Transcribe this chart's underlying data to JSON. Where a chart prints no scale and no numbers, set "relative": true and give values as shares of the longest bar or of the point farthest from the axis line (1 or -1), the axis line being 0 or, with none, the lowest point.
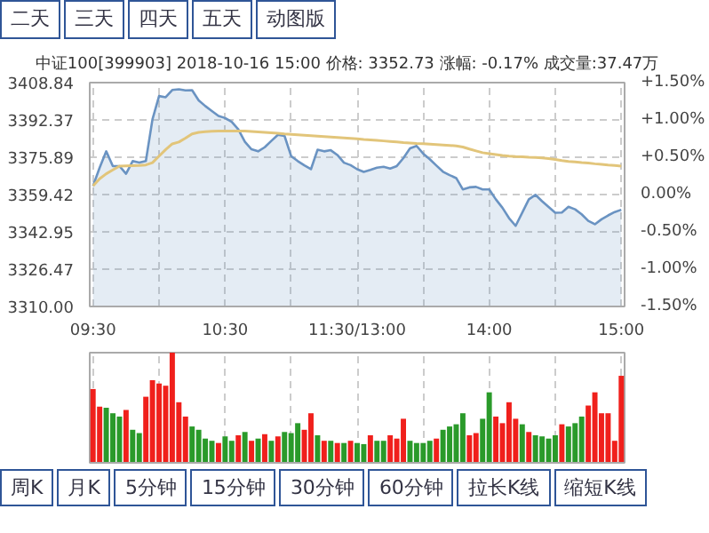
{
  "chart_data": [
    {
      "type": "area",
      "title": "中证100[399903]  2018-10-16 15:00  价格: 3352.73  涨幅: -0.17%  成交量:37.47万",
      "annotations": [
        "二天",
        "三天",
        "四天",
        "五天",
        "动图版"
      ],
      "categories": [
        "09:30",
        null,
        null,
        null,
        null,
        null,
        null,
        null,
        null,
        null,
        null,
        null,
        null,
        null,
        null,
        null,
        null,
        null,
        null,
        null,
        "10:30",
        null,
        null,
        null,
        null,
        null,
        null,
        null,
        null,
        null,
        null,
        null,
        null,
        null,
        null,
        null,
        null,
        null,
        null,
        null,
        "11:30/13:00",
        null,
        null,
        null,
        null,
        null,
        null,
        null,
        null,
        null,
        null,
        null,
        null,
        null,
        null,
        null,
        null,
        null,
        null,
        null,
        "14:00",
        null,
        null,
        null,
        null,
        null,
        null,
        null,
        null,
        null,
        null,
        null,
        null,
        null,
        null,
        null,
        null,
        null,
        null,
        null,
        "15:00"
      ],
      "ylim": [
        3310.0,
        3408.84
      ],
      "yticks": [
        {
          "value": 3310.0,
          "label": "3310.00"
        },
        {
          "value": 3326.47,
          "label": "3326.47"
        },
        {
          "value": 3342.95,
          "label": "3342.95"
        },
        {
          "value": 3359.42,
          "label": "3359.42"
        },
        {
          "value": 3375.89,
          "label": "3375.89"
        },
        {
          "value": 3392.37,
          "label": "3392.37"
        },
        {
          "value": 3408.84,
          "label": "3408.84"
        }
      ],
      "y2lim": [
        -1.5,
        1.5
      ],
      "y2ticks": [
        {
          "value": -1.5,
          "label": "-1.50%"
        },
        {
          "value": -1.0,
          "label": "-1.00%"
        },
        {
          "value": -0.5,
          "label": "-0.50%"
        },
        {
          "value": 0,
          "label": "0.00%"
        },
        {
          "value": 0.5,
          "label": "+0.50%"
        },
        {
          "value": 1.0,
          "label": "+1.00%"
        },
        {
          "value": 1.5,
          "label": "+1.50%"
        }
      ],
      "grid": true,
      "series": [
        {
          "type": "area",
          "color": "#6a93c2",
          "values": [
            3363.2,
            3371.3,
            3378.5,
            3372.0,
            3372.0,
            3368.6,
            3374.2,
            3373.5,
            3374.2,
            3392.6,
            3402.9,
            3402.4,
            3405.6,
            3405.9,
            3405.4,
            3405.5,
            3401.0,
            3398.5,
            3396.3,
            3394.1,
            3393.2,
            3391.5,
            3388.2,
            3382.7,
            3379.4,
            3378.5,
            3380.3,
            3383.1,
            3385.8,
            3385.3,
            3376.4,
            3374.2,
            3372.3,
            3370.6,
            3379.2,
            3378.5,
            3379.0,
            3376.9,
            3373.5,
            3372.4,
            3370.6,
            3369.4,
            3370.3,
            3371.3,
            3371.7,
            3370.9,
            3372.0,
            3375.5,
            3379.8,
            3380.9,
            3377.5,
            3375.0,
            3372.2,
            3369.5,
            3368.0,
            3366.7,
            3361.7,
            3362.6,
            3362.8,
            3361.7,
            3361.7,
            3357.3,
            3353.6,
            3349.0,
            3345.6,
            3351.4,
            3357.3,
            3359.3,
            3356.5,
            3353.9,
            3351.4,
            3351.5,
            3354.0,
            3352.9,
            3350.7,
            3347.8,
            3346.3,
            3348.5,
            3350.2,
            3351.7,
            3352.7
          ]
        },
        {
          "type": "line",
          "color": "#e2c57a",
          "values": [
            3363.2,
            3366.4,
            3368.6,
            3370.3,
            3372.0,
            3372.1,
            3372.2,
            3372.3,
            3372.5,
            3373.5,
            3376.4,
            3379.3,
            3381.8,
            3382.6,
            3384.3,
            3386.2,
            3386.9,
            3387.2,
            3387.4,
            3387.5,
            3387.5,
            3387.5,
            3387.5,
            3387.5,
            3387.3,
            3387.1,
            3386.9,
            3386.7,
            3386.5,
            3386.2,
            3386.0,
            3385.8,
            3385.6,
            3385.4,
            3385.2,
            3385.0,
            3384.8,
            3384.6,
            3384.4,
            3384.2,
            3384.0,
            3383.7,
            3383.5,
            3383.3,
            3383.1,
            3382.9,
            3382.7,
            3382.4,
            3382.2,
            3382.0,
            3381.9,
            3381.7,
            3381.5,
            3381.3,
            3381.1,
            3380.9,
            3380.4,
            3379.5,
            3378.7,
            3377.9,
            3377.5,
            3377.1,
            3376.7,
            3376.4,
            3376.2,
            3376.1,
            3375.9,
            3375.8,
            3375.6,
            3375.3,
            3374.9,
            3374.4,
            3374.0,
            3373.8,
            3373.5,
            3373.3,
            3373.0,
            3372.8,
            3372.5,
            3372.3,
            3372.0
          ]
        }
      ]
    },
    {
      "type": "bar",
      "relative": true,
      "grid": "x",
      "annotations": [
        "周K",
        "月K",
        "5分钟",
        "15分钟",
        "30分钟",
        "60分钟",
        "拉长K线",
        "缩短K线"
      ],
      "categories": [
        null,
        null,
        null,
        null,
        null,
        null,
        null,
        null,
        null,
        null,
        null,
        null,
        null,
        null,
        null,
        null,
        null,
        null,
        null,
        null,
        null,
        null,
        null,
        null,
        null,
        null,
        null,
        null,
        null,
        null,
        null,
        null,
        null,
        null,
        null,
        null,
        null,
        null,
        null,
        null,
        null,
        null,
        null,
        null,
        null,
        null,
        null,
        null,
        null,
        null,
        null,
        null,
        null,
        null,
        null,
        null,
        null,
        null,
        null,
        null,
        null,
        null,
        null,
        null,
        null,
        null,
        null,
        null,
        null,
        null,
        null,
        null,
        null,
        null,
        null,
        null,
        null,
        null,
        null,
        null,
        null
      ],
      "values": [
        0.67,
        0.51,
        0.5,
        0.45,
        0.42,
        0.48,
        0.3,
        0.27,
        0.6,
        0.75,
        0.72,
        0.7,
        1.0,
        0.55,
        0.42,
        0.33,
        0.3,
        0.22,
        0.2,
        0.18,
        0.24,
        0.2,
        0.25,
        0.28,
        0.2,
        0.22,
        0.26,
        0.2,
        0.24,
        0.28,
        0.27,
        0.36,
        0.3,
        0.45,
        0.25,
        0.2,
        0.2,
        0.18,
        0.18,
        0.2,
        0.18,
        0.17,
        0.25,
        0.2,
        0.2,
        0.25,
        0.22,
        0.4,
        0.2,
        0.18,
        0.18,
        0.2,
        0.22,
        0.3,
        0.33,
        0.35,
        0.45,
        0.25,
        0.27,
        0.4,
        0.64,
        0.42,
        0.36,
        0.55,
        0.4,
        0.35,
        0.28,
        0.25,
        0.24,
        0.22,
        0.25,
        0.35,
        0.33,
        0.36,
        0.42,
        0.52,
        0.64,
        0.45,
        0.45,
        0.2,
        0.79
      ],
      "colors": [
        "#f0201c",
        "#f0201c",
        "#2a9a2a",
        "#2a9a2a",
        "#2a9a2a",
        "#f0201c",
        "#2a9a2a",
        "#2a9a2a",
        "#f0201c",
        "#f0201c",
        "#f0201c",
        "#f0201c",
        "#f0201c",
        "#f0201c",
        "#f0201c",
        "#2a9a2a",
        "#2a9a2a",
        "#2a9a2a",
        "#2a9a2a",
        "#f0201c",
        "#2a9a2a",
        "#2a9a2a",
        "#f0201c",
        "#2a9a2a",
        "#f0201c",
        "#2a9a2a",
        "#f0201c",
        "#2a9a2a",
        "#f0201c",
        "#2a9a2a",
        "#2a9a2a",
        "#2a9a2a",
        "#f0201c",
        "#f0201c",
        "#2a9a2a",
        "#f0201c",
        "#2a9a2a",
        "#f0201c",
        "#2a9a2a",
        "#f0201c",
        "#2a9a2a",
        "#2a9a2a",
        "#f0201c",
        "#2a9a2a",
        "#2a9a2a",
        "#f0201c",
        "#f0201c",
        "#f0201c",
        "#2a9a2a",
        "#2a9a2a",
        "#2a9a2a",
        "#2a9a2a",
        "#f0201c",
        "#2a9a2a",
        "#2a9a2a",
        "#2a9a2a",
        "#2a9a2a",
        "#f0201c",
        "#f0201c",
        "#2a9a2a",
        "#2a9a2a",
        "#f0201c",
        "#f0201c",
        "#f0201c",
        "#f0201c",
        "#2a9a2a",
        "#f0201c",
        "#2a9a2a",
        "#2a9a2a",
        "#2a9a2a",
        "#2a9a2a",
        "#f0201c",
        "#2a9a2a",
        "#2a9a2a",
        "#2a9a2a",
        "#f0201c",
        "#f0201c",
        "#f0201c",
        "#f0201c",
        "#f0201c",
        "#f0201c"
      ]
    }
  ]
}
